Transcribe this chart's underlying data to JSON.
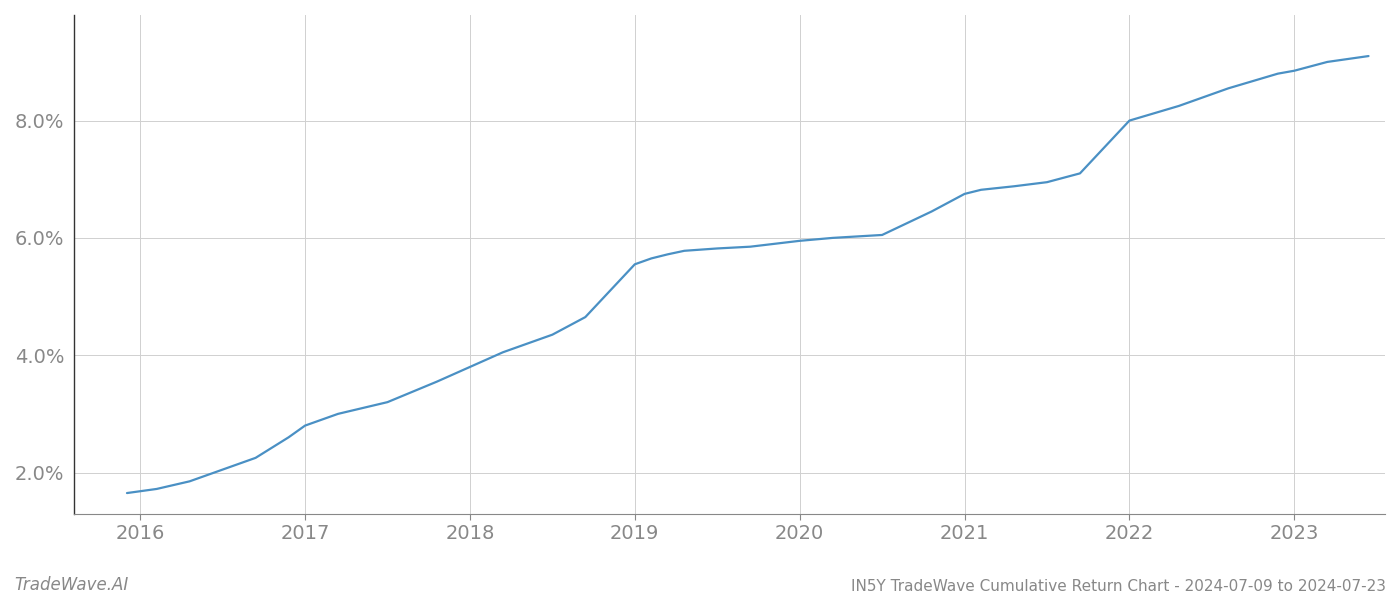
{
  "title": "IN5Y TradeWave Cumulative Return Chart - 2024-07-09 to 2024-07-23",
  "watermark": "TradeWave.AI",
  "line_color": "#4a90c4",
  "background_color": "#ffffff",
  "grid_color": "#d0d0d0",
  "tick_color": "#888888",
  "x_values": [
    2015.92,
    2016.1,
    2016.3,
    2016.5,
    2016.7,
    2016.9,
    2017.0,
    2017.2,
    2017.5,
    2017.8,
    2018.0,
    2018.2,
    2018.5,
    2018.7,
    2019.0,
    2019.1,
    2019.2,
    2019.3,
    2019.5,
    2019.7,
    2020.0,
    2020.2,
    2020.5,
    2020.8,
    2021.0,
    2021.1,
    2021.3,
    2021.5,
    2021.7,
    2022.0,
    2022.3,
    2022.6,
    2022.9,
    2023.0,
    2023.2,
    2023.45
  ],
  "y_values": [
    1.65,
    1.72,
    1.85,
    2.05,
    2.25,
    2.6,
    2.8,
    3.0,
    3.2,
    3.55,
    3.8,
    4.05,
    4.35,
    4.65,
    5.55,
    5.65,
    5.72,
    5.78,
    5.82,
    5.85,
    5.95,
    6.0,
    6.05,
    6.45,
    6.75,
    6.82,
    6.88,
    6.95,
    7.1,
    8.0,
    8.25,
    8.55,
    8.8,
    8.85,
    9.0,
    9.1
  ],
  "xlim": [
    2015.6,
    2023.55
  ],
  "ylim": [
    1.3,
    9.8
  ],
  "yticks": [
    2.0,
    4.0,
    6.0,
    8.0
  ],
  "xticks": [
    2016,
    2017,
    2018,
    2019,
    2020,
    2021,
    2022,
    2023
  ],
  "title_fontsize": 11,
  "watermark_fontsize": 12,
  "tick_fontsize": 14,
  "line_width": 1.6
}
